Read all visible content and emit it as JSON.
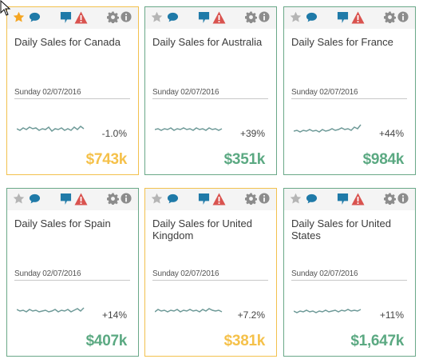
{
  "cards": [
    {
      "title": "Daily Sales for Canada",
      "date": "Sunday 02/07/2016",
      "change": "-1.0%",
      "value": "$743k",
      "status": "warn",
      "starred": true
    },
    {
      "title": "Daily Sales for Australia",
      "date": "Sunday 02/07/2016",
      "change": "+39%",
      "value": "$351k",
      "status": "good",
      "starred": false
    },
    {
      "title": "Daily Sales for France",
      "date": "Sunday 02/07/2016",
      "change": "+44%",
      "value": "$984k",
      "status": "good",
      "starred": false
    },
    {
      "title": "Daily Sales for Spain",
      "date": "Sunday 02/07/2016",
      "change": "+14%",
      "value": "$407k",
      "status": "good",
      "starred": false
    },
    {
      "title": "Daily Sales for United Kingdom",
      "date": "Sunday 02/07/2016",
      "change": "+7.2%",
      "value": "$381k",
      "status": "warn",
      "starred": false
    },
    {
      "title": "Daily Sales for United States",
      "date": "Sunday 02/07/2016",
      "change": "+11%",
      "value": "$1,647k",
      "status": "good",
      "starred": false
    }
  ],
  "icons": [
    "star-icon",
    "comment-icon",
    "annotation-icon",
    "alert-icon",
    "gear-icon",
    "info-icon"
  ],
  "colors": {
    "good": "#5ba982",
    "warn": "#f5c14a",
    "border_good": "#6aa888",
    "border_warn": "#f2c14e",
    "comment": "#1f7aa8",
    "alert": "#d9534f",
    "star_active": "#f5a623",
    "star_inactive": "#b5b5b5",
    "toolbar_icon": "#8c8c8c",
    "sparkline": "#6e9a98"
  }
}
